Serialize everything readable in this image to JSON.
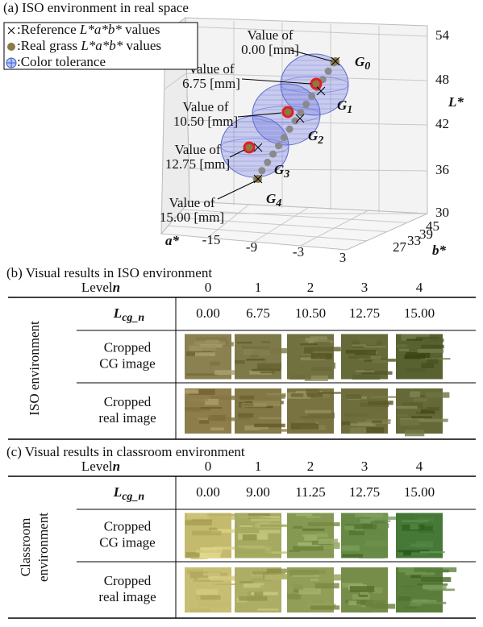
{
  "panel_a": {
    "title": "(a) ISO environment in real space",
    "legend": [
      {
        "text": ":Reference ",
        "italic": "L*a*b*",
        "suffix": " values"
      },
      {
        "text": ":Real grass ",
        "italic": "L*a*b*",
        "suffix": " values"
      },
      {
        "text": ":Color tolerance"
      }
    ],
    "axis_labels": {
      "l": "L*",
      "a": "a*",
      "b": "b*"
    },
    "l_ticks": [
      54,
      48,
      42,
      36,
      30
    ],
    "a_ticks": [
      -15,
      -9,
      -3,
      3
    ],
    "b_ticks": [
      27,
      33,
      39,
      45
    ],
    "groups": [
      {
        "g": "G",
        "index": "0",
        "note_1": "Value of",
        "note_2": "0.00 [mm]"
      },
      {
        "g": "G",
        "index": "1",
        "note_1": "Value of",
        "note_2": "6.75 [mm]"
      },
      {
        "g": "G",
        "index": "2",
        "note_1": "Value of",
        "note_2": "10.50 [mm]"
      },
      {
        "g": "G",
        "index": "3",
        "note_1": "Value of",
        "note_2": "12.75 [mm]"
      },
      {
        "g": "G",
        "index": "4",
        "note_1": "Value of",
        "note_2": "15.00 [mm]"
      }
    ]
  },
  "panel_b": {
    "title": "(b) Visual results in ISO environment",
    "side_label": [
      "ISO environment"
    ],
    "header": {
      "label": "Level",
      "var": "n",
      "levels": [
        0,
        1,
        2,
        3,
        4
      ]
    },
    "lcg": {
      "symbol": "L",
      "subscript": "cg_n",
      "values": [
        "0.00",
        "6.75",
        "10.50",
        "12.75",
        "15.00"
      ]
    },
    "rows": [
      [
        "Cropped",
        "CG image"
      ],
      [
        "Cropped",
        "real image"
      ]
    ]
  },
  "panel_c": {
    "title": "(c) Visual results in classroom environment",
    "side_label": [
      "Classroom",
      "environment"
    ],
    "header": {
      "label": "Level",
      "var": "n",
      "levels": [
        0,
        1,
        2,
        3,
        4
      ]
    },
    "lcg": {
      "symbol": "L",
      "subscript": "cg_n",
      "values": [
        "0.00",
        "9.00",
        "11.25",
        "12.75",
        "15.00"
      ]
    },
    "rows": [
      [
        "Cropped",
        "CG image"
      ],
      [
        "Cropped",
        "real image"
      ]
    ]
  }
}
